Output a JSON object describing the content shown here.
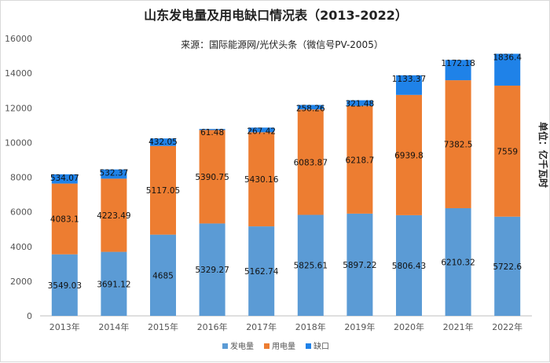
{
  "chart_data": {
    "type": "bar",
    "stacked": true,
    "title": "山东发电量及用电缺口情况表（2013-2022）",
    "subtitle": "来源：国际能源网/光伏头条（微信号PV-2005）",
    "unit_label": "单位：亿千瓦时",
    "categories": [
      "2013年",
      "2014年",
      "2015年",
      "2016年",
      "2017年",
      "2018年",
      "2019年",
      "2020年",
      "2021年",
      "2022年"
    ],
    "series": [
      {
        "name": "发电量",
        "color": "#5b9bd5",
        "values": [
          3549.03,
          3691.12,
          4685,
          5329.27,
          5162.74,
          5825.61,
          5897.22,
          5806.43,
          6210.32,
          5722.6
        ]
      },
      {
        "name": "用电量",
        "color": "#ed7d31",
        "values": [
          4083.1,
          4223.49,
          5117.05,
          5390.75,
          5430.16,
          6083.87,
          6218.7,
          6939.8,
          7382.5,
          7559
        ]
      },
      {
        "name": "缺口",
        "color": "#1f82e8",
        "values": [
          534.07,
          532.37,
          432.05,
          61.48,
          267.42,
          258.26,
          321.48,
          1133.37,
          1172.18,
          1836.4
        ]
      }
    ],
    "ylim": [
      0,
      16000
    ],
    "yticks": [
      0,
      2000,
      4000,
      6000,
      8000,
      10000,
      12000,
      14000,
      16000
    ],
    "grid": false,
    "legend": "bottom-center"
  }
}
